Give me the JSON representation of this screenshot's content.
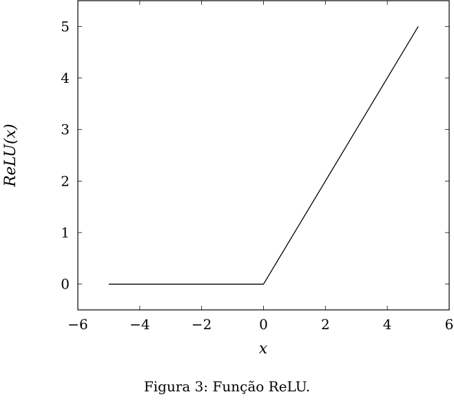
{
  "caption": "Figura 3: Função ReLU.",
  "chart_data": {
    "type": "line",
    "title": "",
    "xlabel": "x",
    "ylabel": "ReLU(x)",
    "xlim": [
      -6,
      6
    ],
    "ylim": [
      -0.5,
      5.5
    ],
    "xticks": [
      -6,
      -4,
      -2,
      0,
      2,
      4,
      6
    ],
    "yticks": [
      0,
      1,
      2,
      3,
      4,
      5
    ],
    "xtick_labels": [
      "−6",
      "−4",
      "−2",
      "0",
      "2",
      "4",
      "6"
    ],
    "ytick_labels": [
      "0",
      "1",
      "2",
      "3",
      "4",
      "5"
    ],
    "grid": false,
    "legend": "none",
    "series": [
      {
        "color": "#000000",
        "points": [
          {
            "x": -5,
            "y": 0
          },
          {
            "x": 0,
            "y": 0
          },
          {
            "x": 5,
            "y": 5
          }
        ]
      }
    ]
  }
}
